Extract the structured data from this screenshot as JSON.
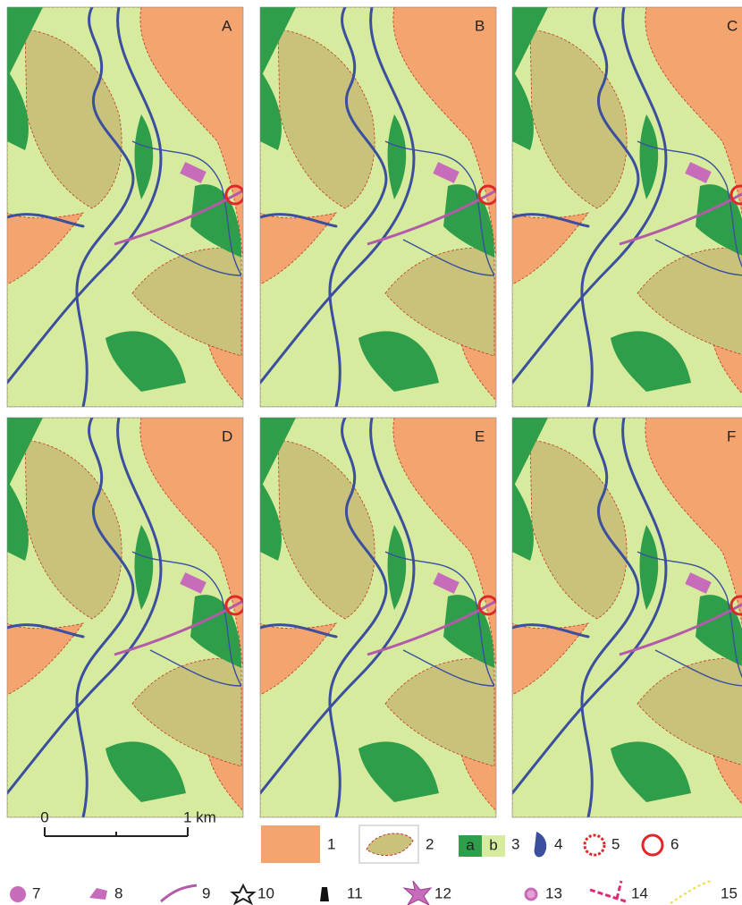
{
  "panels": [
    {
      "label": "A"
    },
    {
      "label": "B"
    },
    {
      "label": "C"
    },
    {
      "label": "D"
    },
    {
      "label": "E"
    },
    {
      "label": "F"
    }
  ],
  "scale_bar": {
    "start": "0",
    "end": "1 km"
  },
  "legend": [
    {
      "number": "1"
    },
    {
      "number": "2"
    },
    {
      "number": "3",
      "parts": [
        "a",
        "b"
      ]
    },
    {
      "number": "4"
    },
    {
      "number": "5"
    },
    {
      "number": "6"
    },
    {
      "number": "7"
    },
    {
      "number": "8"
    },
    {
      "number": "9"
    },
    {
      "number": "10"
    },
    {
      "number": "11"
    },
    {
      "number": "12"
    },
    {
      "number": "13"
    },
    {
      "number": "14"
    },
    {
      "number": "15"
    }
  ]
}
